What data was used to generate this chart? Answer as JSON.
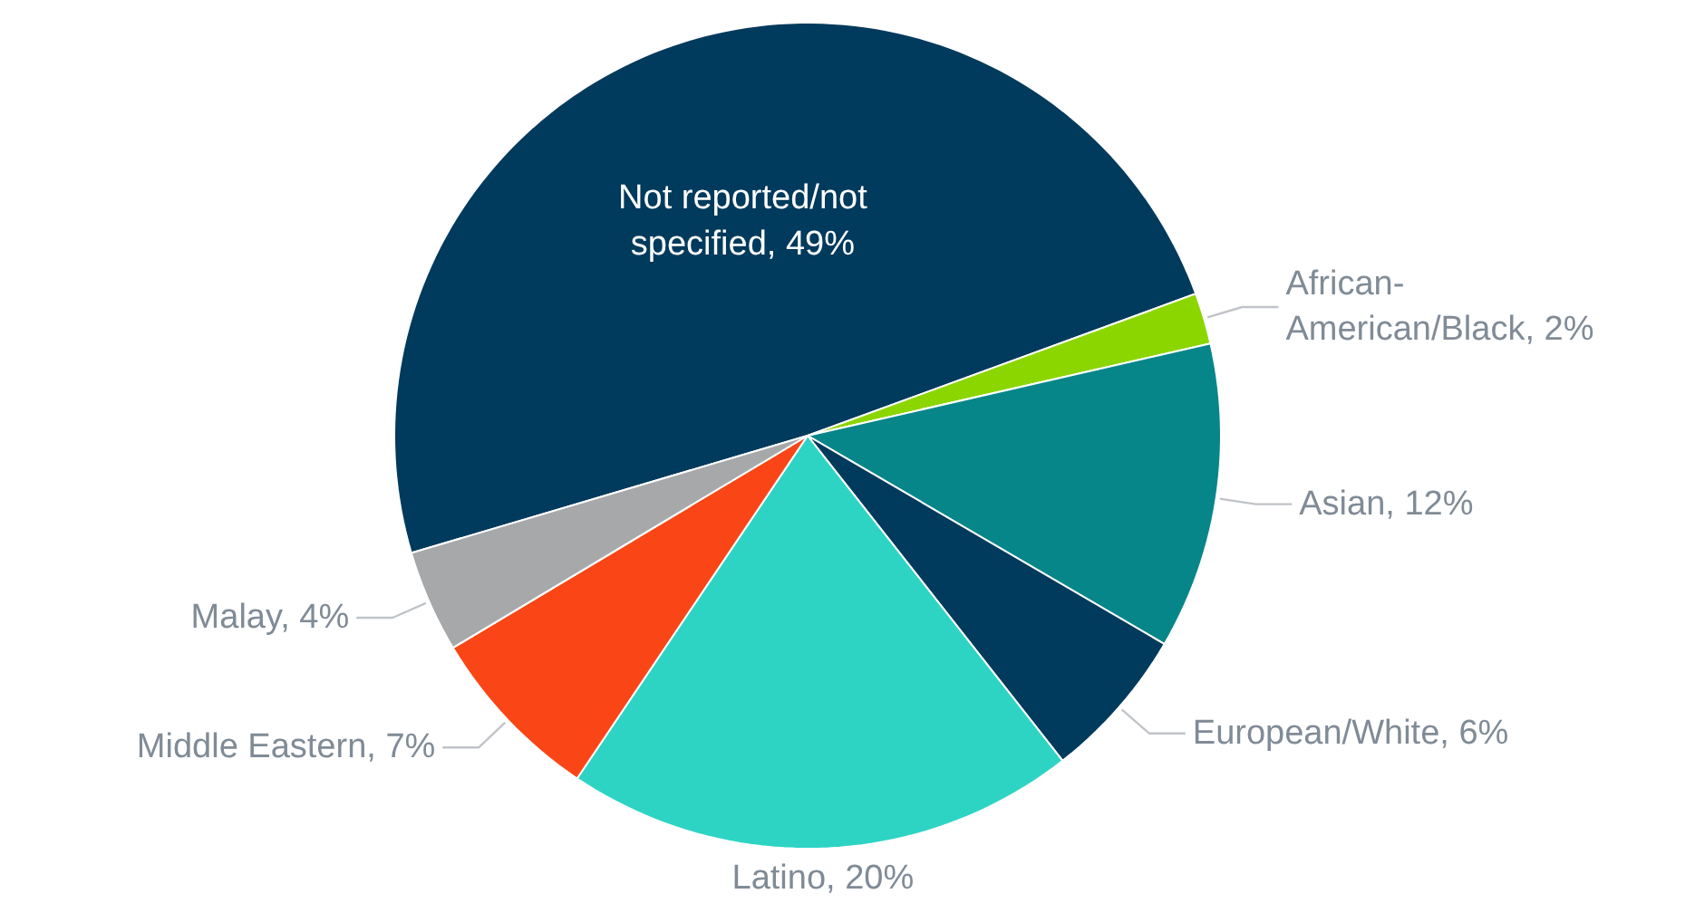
{
  "chart_data": {
    "type": "pie",
    "categories": [
      "Not reported/not specified",
      "African-American/Black",
      "Asian",
      "European/White",
      "Latino",
      "Middle Eastern",
      "Malay"
    ],
    "values": [
      49,
      2,
      12,
      6,
      20,
      7,
      4
    ],
    "value_labels": [
      ", 49%",
      ", 2%",
      ", 12%",
      ", 6%",
      ", 20%",
      ", 7%",
      ", 4%"
    ],
    "colors": [
      "#003a5c",
      "#8cd600",
      "#07868a",
      "#003a5c",
      "#2dd4c4",
      "#fa4616",
      "#a7a8aa"
    ]
  }
}
